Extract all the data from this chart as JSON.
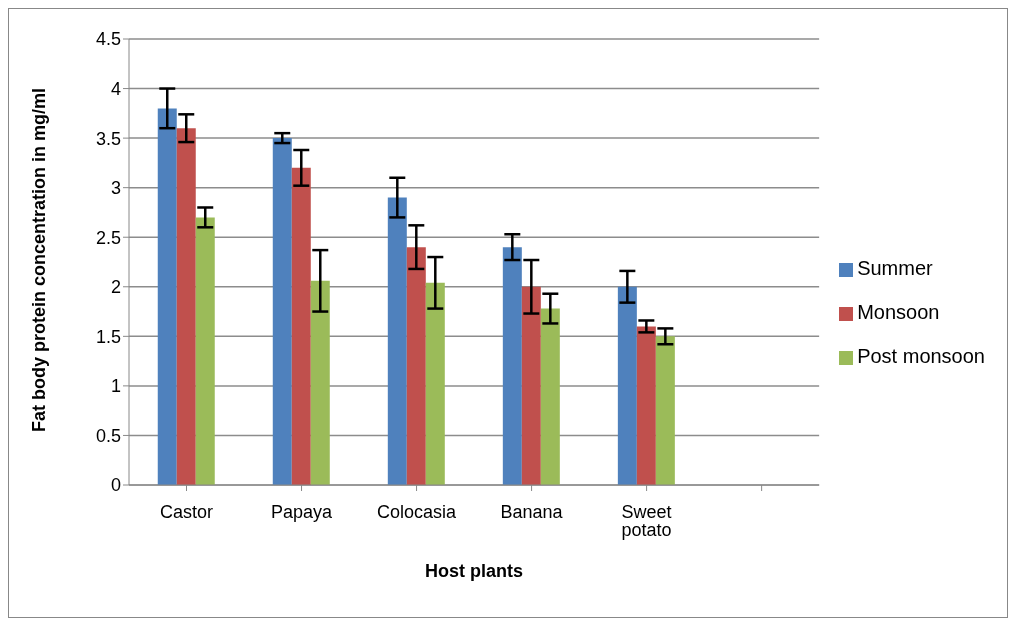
{
  "chart_data": {
    "type": "bar",
    "xlabel": "Host plants",
    "ylabel": "Fat body protein concentration in mg/ml",
    "categories": [
      "Castor",
      "Papaya",
      "Colocasia",
      "Banana",
      "Sweet potato",
      null
    ],
    "series": [
      {
        "name": "Summer",
        "color": "#4f81bd",
        "values": [
          3.8,
          3.5,
          2.9,
          2.4,
          2.0,
          null
        ],
        "errors": [
          0.2,
          0.05,
          0.2,
          0.13,
          0.16,
          null
        ]
      },
      {
        "name": "Monsoon",
        "color": "#c0504d",
        "values": [
          3.6,
          3.2,
          2.4,
          2.0,
          1.6,
          null
        ],
        "errors": [
          0.14,
          0.18,
          0.22,
          0.27,
          0.06,
          null
        ]
      },
      {
        "name": "Post monsoon",
        "color": "#9bbb59",
        "values": [
          2.7,
          2.06,
          2.04,
          1.78,
          1.5,
          null
        ],
        "errors": [
          0.1,
          0.31,
          0.26,
          0.15,
          0.08,
          null
        ]
      }
    ],
    "ylim": [
      0,
      4.5
    ],
    "yticks": [
      0,
      0.5,
      1,
      1.5,
      2,
      2.5,
      3,
      3.5,
      4,
      4.5
    ],
    "grid": "y",
    "legend": "right"
  }
}
